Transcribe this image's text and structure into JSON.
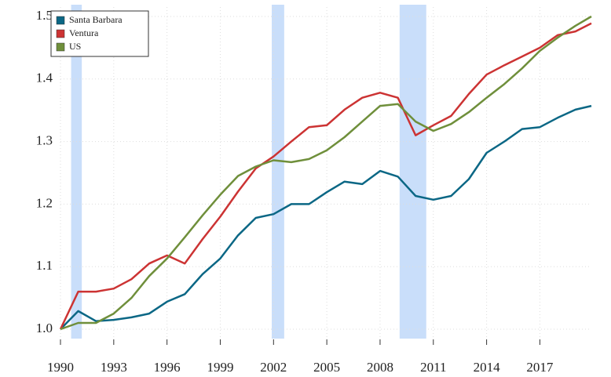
{
  "chart_data": {
    "type": "line",
    "x": [
      1990,
      1991,
      1992,
      1993,
      1994,
      1995,
      1996,
      1997,
      1998,
      1999,
      2000,
      2001,
      2002,
      2003,
      2004,
      2005,
      2006,
      2007,
      2008,
      2009,
      2010,
      2011,
      2012,
      2013,
      2014,
      2015,
      2016,
      2017,
      2018,
      2019,
      2019.9
    ],
    "series": [
      {
        "name": "Santa Barbara",
        "color": "#0b6785",
        "values": [
          1.0,
          1.029,
          1.013,
          1.015,
          1.019,
          1.025,
          1.044,
          1.056,
          1.088,
          1.113,
          1.15,
          1.178,
          1.184,
          1.2,
          1.2,
          1.219,
          1.236,
          1.232,
          1.253,
          1.244,
          1.213,
          1.207,
          1.213,
          1.24,
          1.282,
          1.3,
          1.32,
          1.323,
          1.338,
          1.351,
          1.357
        ]
      },
      {
        "name": "Ventura",
        "color": "#cc3333",
        "values": [
          1.0,
          1.06,
          1.06,
          1.065,
          1.08,
          1.105,
          1.118,
          1.105,
          1.144,
          1.18,
          1.22,
          1.257,
          1.276,
          1.3,
          1.323,
          1.326,
          1.351,
          1.37,
          1.378,
          1.37,
          1.31,
          1.326,
          1.341,
          1.376,
          1.407,
          1.422,
          1.436,
          1.45,
          1.47,
          1.476,
          1.489
        ]
      },
      {
        "name": "US",
        "color": "#6f8f3b",
        "values": [
          1.0,
          1.01,
          1.01,
          1.025,
          1.05,
          1.085,
          1.113,
          1.147,
          1.182,
          1.215,
          1.245,
          1.26,
          1.27,
          1.267,
          1.272,
          1.286,
          1.307,
          1.332,
          1.357,
          1.36,
          1.332,
          1.317,
          1.328,
          1.347,
          1.37,
          1.392,
          1.417,
          1.445,
          1.466,
          1.485,
          1.5
        ]
      }
    ],
    "shaded_periods": [
      [
        1990.6,
        1991.2
      ],
      [
        2001.9,
        2002.6
      ],
      [
        2009.1,
        2010.6
      ]
    ],
    "shade_color": "#c9defa",
    "xlim": [
      1990,
      2019.9
    ],
    "xticks": [
      1990,
      1993,
      1996,
      1999,
      2002,
      2005,
      2008,
      2011,
      2014,
      2017
    ],
    "ylim": [
      0.985,
      1.515
    ],
    "yticks": [
      {
        "value": 1,
        "label": "1.0"
      },
      1.1,
      1.2,
      1.3,
      1.4,
      1.5
    ],
    "grid": true,
    "legend": "upper left"
  }
}
